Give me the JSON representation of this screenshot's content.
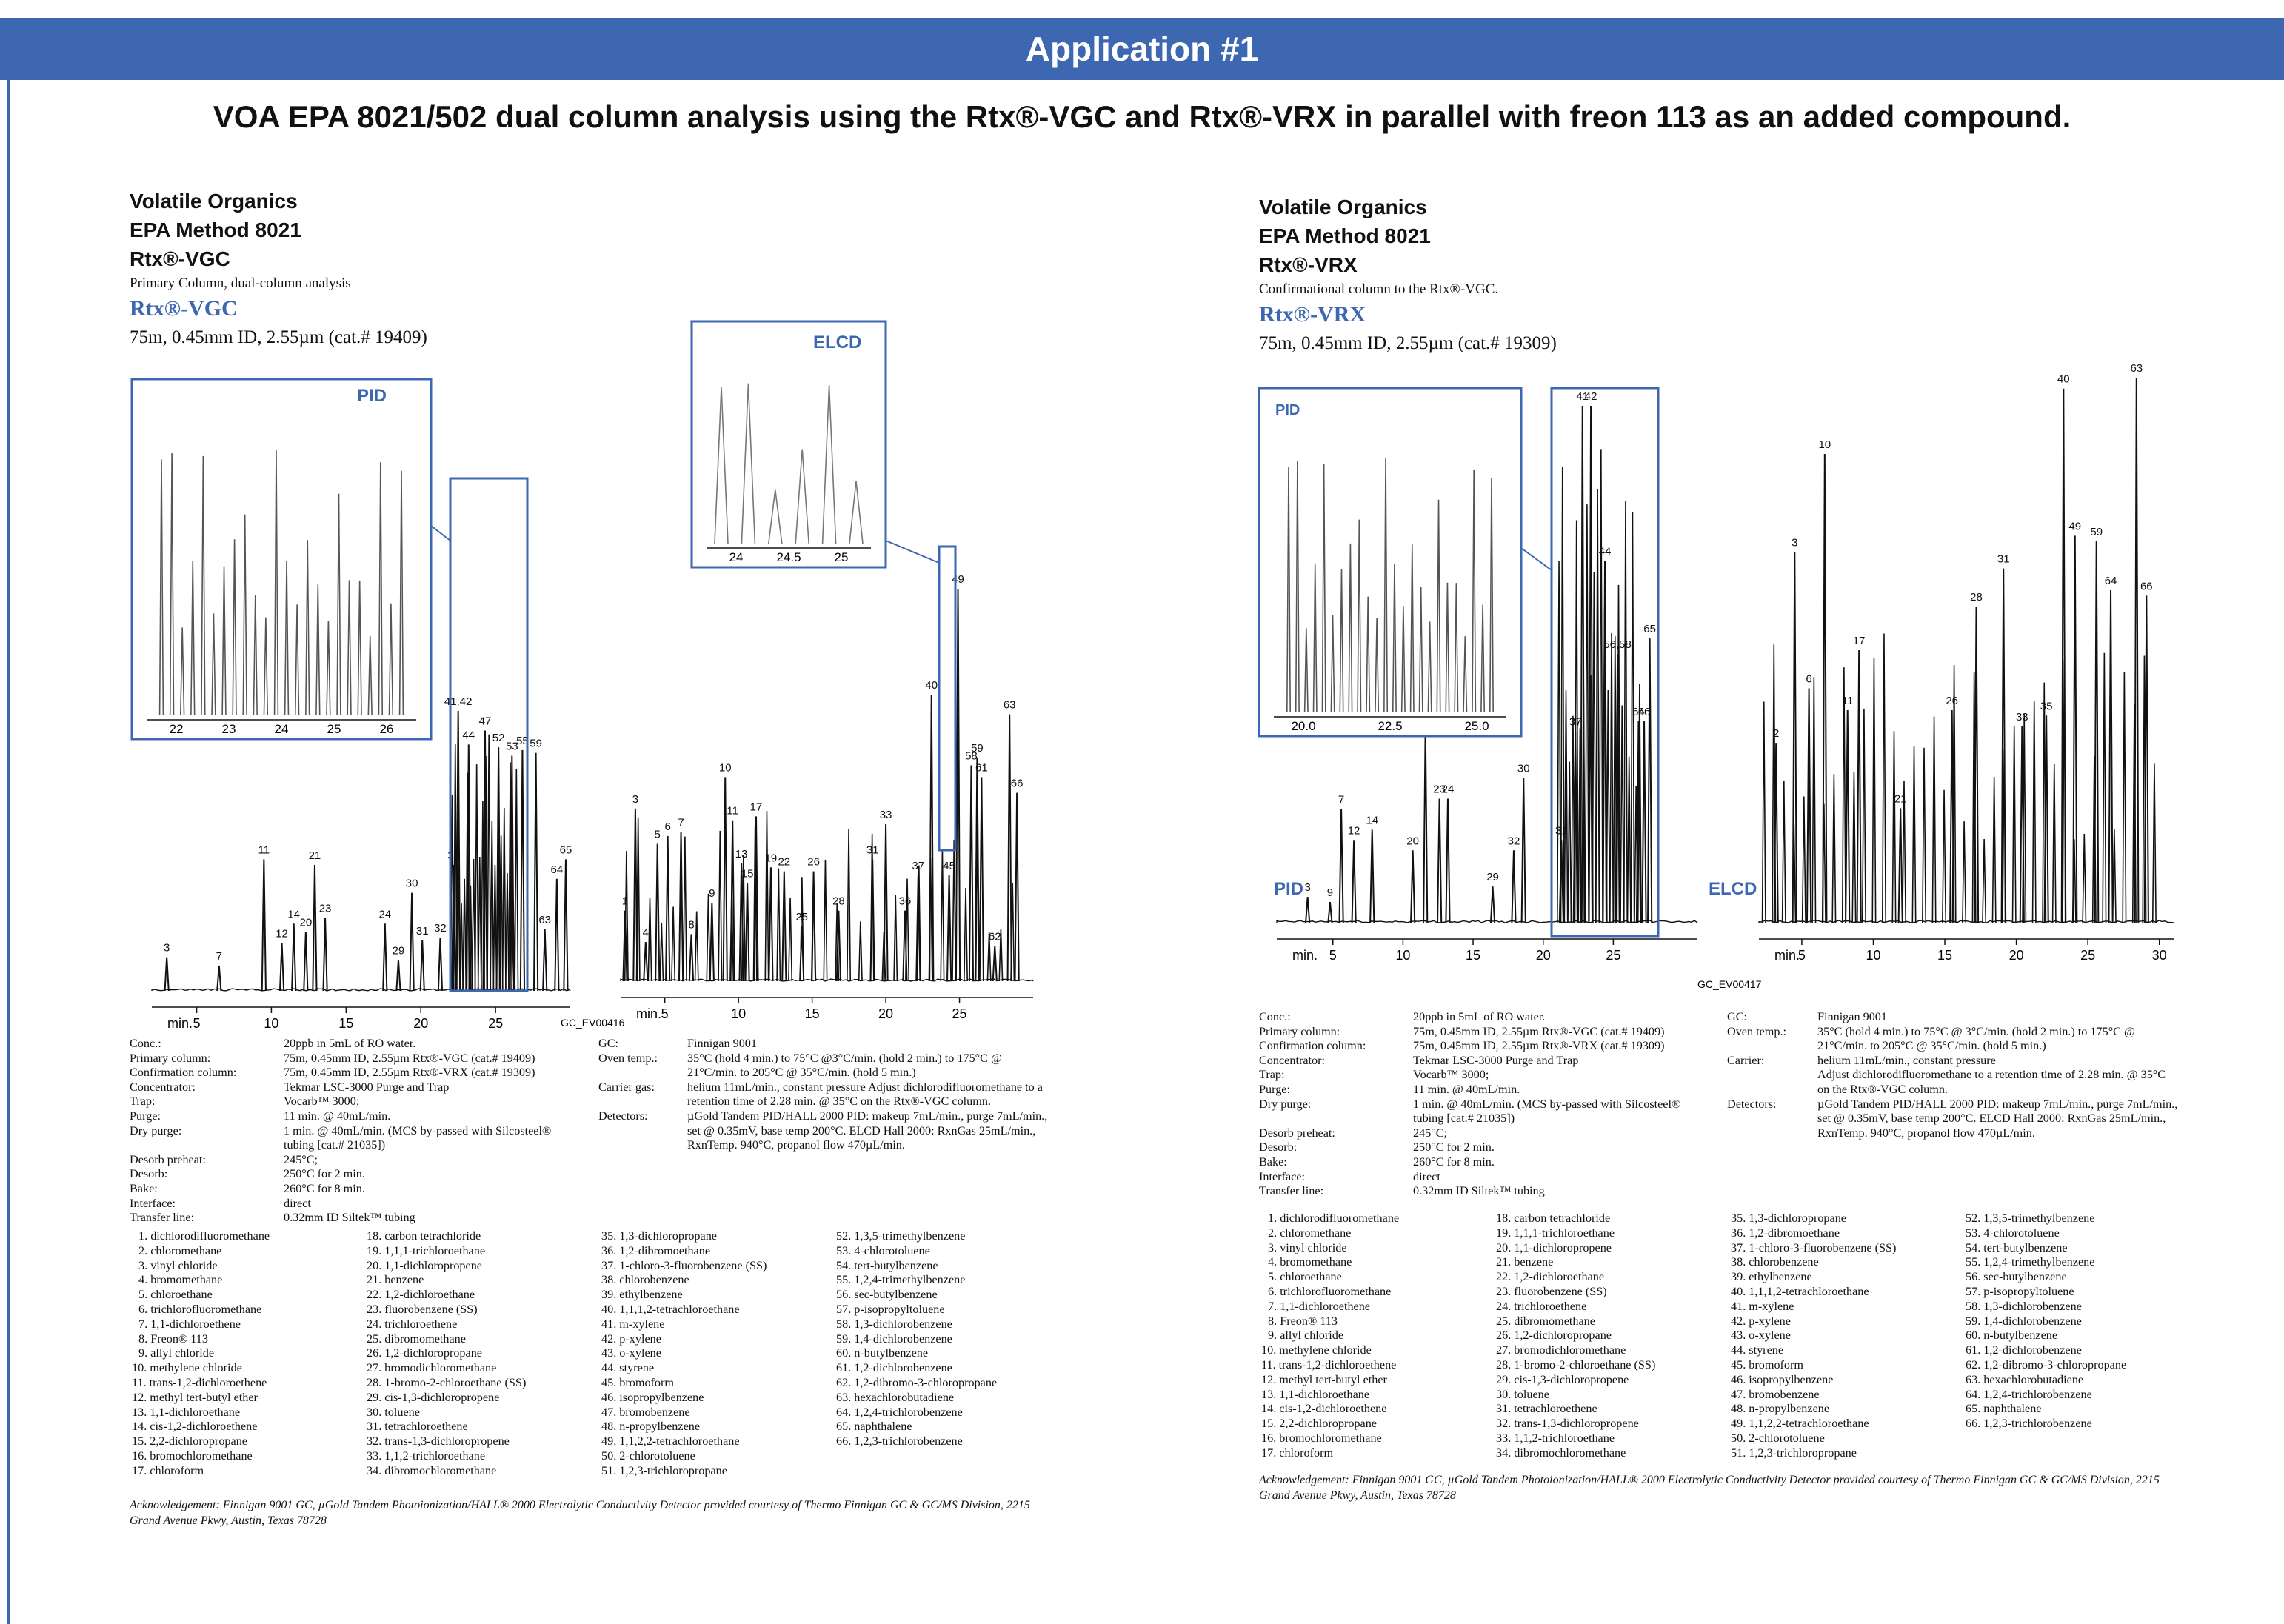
{
  "banner": "Application #1",
  "title": "VOA EPA 8021/502 dual column analysis using the Rtx®-VGC and Rtx®-VRX in parallel with freon 113 as an added compound.",
  "colors": {
    "brand_blue": "#3e67b1",
    "trace": "#111111",
    "inset_trace": "#555555"
  },
  "left": {
    "header": [
      "Volatile Organics",
      "EPA Method 8021",
      "Rtx®-VGC"
    ],
    "subtitle": "Primary Column, dual-column analysis",
    "column_name": "Rtx®-VGC",
    "column_spec": "75m, 0.45mm ID, 2.55µm  (cat.# 19409)",
    "pid_label": "PID",
    "elcd_label": "ELCD",
    "code": "GC_EV00416",
    "pid_axis": {
      "label": "min.",
      "ticks": [
        "5",
        "10",
        "15",
        "20",
        "25"
      ]
    },
    "elcd_axis": {
      "label": "min.",
      "ticks": [
        "5",
        "10",
        "15",
        "20",
        "25"
      ]
    },
    "pid_inset_ticks": [
      "22",
      "23",
      "24",
      "25",
      "26"
    ],
    "elcd_inset_ticks": [
      "24",
      "24.5",
      "25"
    ],
    "conditions_a": [
      {
        "k": "Conc.:",
        "v": "20ppb in 5mL of RO water."
      },
      {
        "k": "Primary column:",
        "v": "75m, 0.45mm ID, 2.55µm Rtx®-VGC (cat.# 19409)"
      },
      {
        "k": "Confirmation column:",
        "v": "75m, 0.45mm ID, 2.55µm Rtx®-VRX (cat.# 19309)"
      },
      {
        "k": "Concentrator:",
        "v": "Tekmar LSC-3000 Purge and Trap"
      },
      {
        "k": "Trap:",
        "v": "Vocarb™ 3000;"
      },
      {
        "k": "Purge:",
        "v": "11 min. @ 40mL/min."
      },
      {
        "k": "Dry purge:",
        "v": "1 min. @ 40mL/min. (MCS by-passed with Silcosteel® tubing [cat.# 21035])"
      },
      {
        "k": "Desorb preheat:",
        "v": "245°C;"
      },
      {
        "k": "Desorb:",
        "v": "250°C for 2 min."
      },
      {
        "k": "Bake:",
        "v": "260°C for 8 min."
      },
      {
        "k": "Interface:",
        "v": "direct"
      },
      {
        "k": "Transfer line:",
        "v": "0.32mm ID Siltek™ tubing"
      }
    ],
    "conditions_b": [
      {
        "k": "GC:",
        "v": "Finnigan 9001"
      },
      {
        "k": "Oven temp.:",
        "v": "35°C (hold 4 min.) to 75°C @3°C/min. (hold 2 min.) to 175°C @ 21°C/min. to 205°C @ 35°C/min. (hold 5 min.)"
      },
      {
        "k": "Carrier gas:",
        "v": "helium 11mL/min., constant pressure Adjust dichlorodifluoromethane to a retention time of 2.28 min. @ 35°C on the Rtx®-VGC column."
      },
      {
        "k": "Detectors:",
        "v": "µGold Tandem PID/HALL 2000 PID:  makeup 7mL/min., purge 7mL/min., set @ 0.35mV, base temp 200°C. ELCD Hall 2000:  RxnGas 25mL/min., RxnTemp. 940°C, propanol flow 470µL/min."
      }
    ],
    "compounds": [
      [
        "1. dichlorodifluoromethane",
        "2. chloromethane",
        "3. vinyl chloride",
        "4. bromomethane",
        "5. chloroethane",
        "6. trichlorofluoromethane",
        "7. 1,1-dichloroethene",
        "8. Freon® 113",
        "9. allyl chloride",
        "10. methylene chloride",
        "11. trans-1,2-dichloroethene",
        "12. methyl tert-butyl ether",
        "13. 1,1-dichloroethane",
        "14. cis-1,2-dichloroethene",
        "15. 2,2-dichloropropane",
        "16. bromochloromethane",
        "17. chloroform"
      ],
      [
        "18. carbon tetrachloride",
        "19. 1,1,1-trichloroethane",
        "20. 1,1-dichloropropene",
        "21. benzene",
        "22. 1,2-dichloroethane",
        "23. fluorobenzene (SS)",
        "24. trichloroethene",
        "25. dibromomethane",
        "26. 1,2-dichloropropane",
        "27. bromodichloromethane",
        "28. 1-bromo-2-chloroethane (SS)",
        "29. cis-1,3-dichloropropene",
        "30. toluene",
        "31. tetrachloroethene",
        "32. trans-1,3-dichloropropene",
        "33. 1,1,2-trichloroethane",
        "34. dibromochloromethane"
      ],
      [
        "35. 1,3-dichloropropane",
        "36. 1,2-dibromoethane",
        "37. 1-chloro-3-fluorobenzene (SS)",
        "38. chlorobenzene",
        "39. ethylbenzene",
        "40. 1,1,1,2-tetrachloroethane",
        "41. m-xylene",
        "42. p-xylene",
        "43. o-xylene",
        "44. styrene",
        "45. bromoform",
        "46. isopropylbenzene",
        "47. bromobenzene",
        "48. n-propylbenzene",
        "49. 1,1,2,2-tetrachloroethane",
        "50. 2-chlorotoluene",
        "51. 1,2,3-trichloropropane"
      ],
      [
        "52. 1,3,5-trimethylbenzene",
        "53. 4-chlorotoluene",
        "54. tert-butylbenzene",
        "55. 1,2,4-trimethylbenzene",
        "56. sec-butylbenzene",
        "57. p-isopropyltoluene",
        "58. 1,3-dichlorobenzene",
        "59. 1,4-dichlorobenzene",
        "60. n-butylbenzene",
        "61. 1,2-dichlorobenzene",
        "62. 1,2-dibromo-3-chloropropane",
        "63. hexachlorobutadiene",
        "64. 1,2,4-trichlorobenzene",
        "65. naphthalene",
        "66. 1,2,3-trichlorobenzene"
      ]
    ],
    "ack": "Acknowledgement: Finnigan 9001 GC,  µGold Tandem Photoionization/HALL® 2000 Electrolytic Conductivity Detector provided courtesy of Thermo Finnigan GC & GC/MS Division, 2215 Grand Avenue Pkwy, Austin, Texas 78728"
  },
  "right": {
    "header": [
      "Volatile Organics",
      "EPA Method 8021",
      "Rtx®-VRX"
    ],
    "subtitle": "Confirmational column to the Rtx®-VGC.",
    "column_name": "Rtx®-VRX",
    "column_spec": "75m, 0.45mm ID, 2.55µm  (cat.# 19309)",
    "pid_label": "PID",
    "elcd_label": "ELCD",
    "code": "GC_EV00417",
    "pid_axis": {
      "label": "min.",
      "ticks": [
        "5",
        "10",
        "15",
        "20",
        "25"
      ]
    },
    "elcd_axis": {
      "label": "min.",
      "ticks": [
        "5",
        "10",
        "15",
        "20",
        "25",
        "30"
      ]
    },
    "pid_inset_ticks": [
      "20.0",
      "22.5",
      "25.0"
    ],
    "conditions_a": [
      {
        "k": "Conc.:",
        "v": "20ppb in 5mL of RO water."
      },
      {
        "k": "Primary column:",
        "v": "75m, 0.45mm ID, 2.55µm Rtx®-VGC (cat.# 19409)"
      },
      {
        "k": "Confirmation column:",
        "v": "75m, 0.45mm ID, 2.55µm Rtx®-VRX (cat.# 19309)"
      },
      {
        "k": "Concentrator:",
        "v": "Tekmar LSC-3000 Purge and Trap"
      },
      {
        "k": "Trap:",
        "v": "Vocarb™ 3000;"
      },
      {
        "k": "Purge:",
        "v": "11 min. @ 40mL/min."
      },
      {
        "k": "Dry purge:",
        "v": "1 min. @ 40mL/min. (MCS by-passed with Silcosteel® tubing [cat.# 21035])"
      },
      {
        "k": "Desorb preheat:",
        "v": "245°C;"
      },
      {
        "k": "Desorb:",
        "v": "250°C for 2 min."
      },
      {
        "k": "Bake:",
        "v": "260°C for 8 min."
      },
      {
        "k": "Interface:",
        "v": "direct"
      },
      {
        "k": "Transfer line:",
        "v": "0.32mm ID Siltek™ tubing"
      }
    ],
    "conditions_b": [
      {
        "k": "GC:",
        "v": "Finnigan 9001"
      },
      {
        "k": "Oven temp.:",
        "v": "35°C (hold 4 min.) to 75°C @ 3°C/min. (hold 2 min.) to 175°C @ 21°C/min. to 205°C @ 35°C/min. (hold 5 min.)"
      },
      {
        "k": "Carrier:",
        "v": "helium 11mL/min., constant pressure"
      },
      {
        "k": "",
        "v": "Adjust dichlorodifluoromethane to a retention time of 2.28 min. @ 35°C on the Rtx®-VGC column."
      },
      {
        "k": "Detectors:",
        "v": "µGold Tandem PID/HALL 2000 PID:  makeup 7mL/min., purge 7mL/min., set @ 0.35mV, base temp 200°C. ELCD Hall 2000:  RxnGas 25mL/min., RxnTemp.  940°C, propanol flow 470µL/min."
      }
    ],
    "compounds": [
      [
        "1. dichlorodifluoromethane",
        "2. chloromethane",
        "3. vinyl chloride",
        "4. bromomethane",
        "5. chloroethane",
        "6. trichlorofluoromethane",
        "7. 1,1-dichloroethene",
        "8. Freon® 113",
        "9. allyl chloride",
        "10. methylene chloride",
        "11. trans-1,2-dichloroethene",
        "12. methyl tert-butyl ether",
        "13. 1,1-dichloroethane",
        "14. cis-1,2-dichloroethene",
        "15. 2,2-dichloropropane",
        "16. bromochloromethane",
        "17. chloroform"
      ],
      [
        "18. carbon tetrachloride",
        "19. 1,1,1-trichloroethane",
        "20. 1,1-dichloropropene",
        "21. benzene",
        "22. 1,2-dichloroethane",
        "23. fluorobenzene (SS)",
        "24. trichloroethene",
        "25. dibromomethane",
        "26. 1,2-dichloropropane",
        "27. bromodichloromethane",
        "28. 1-bromo-2-chloroethane (SS)",
        "29. cis-1,3-dichloropropene",
        "30. toluene",
        "31. tetrachloroethene",
        "32. trans-1,3-dichloropropene",
        "33. 1,1,2-trichloroethane",
        "34. dibromochloromethane"
      ],
      [
        "35. 1,3-dichloropropane",
        "36. 1,2-dibromoethane",
        "37. 1-chloro-3-fluorobenzene (SS)",
        "38. chlorobenzene",
        "39. ethylbenzene",
        "40. 1,1,1,2-tetrachloroethane",
        "41. m-xylene",
        "42. p-xylene",
        "43. o-xylene",
        "44. styrene",
        "45. bromoform",
        "46. isopropylbenzene",
        "47. bromobenzene",
        "48. n-propylbenzene",
        "49. 1,1,2,2-tetrachloroethane",
        "50. 2-chlorotoluene",
        "51. 1,2,3-trichloropropane"
      ],
      [
        "52. 1,3,5-trimethylbenzene",
        "53. 4-chlorotoluene",
        "54. tert-butylbenzene",
        "55. 1,2,4-trimethylbenzene",
        "56. sec-butylbenzene",
        "57. p-isopropyltoluene",
        "58. 1,3-dichlorobenzene",
        "59. 1,4-dichlorobenzene",
        "60. n-butylbenzene",
        "61. 1,2-dichlorobenzene",
        "62. 1,2-dibromo-3-chloropropane",
        "63. hexachlorobutadiene",
        "64. 1,2,4-trichlorobenzene",
        "65. naphthalene",
        "66. 1,2,3-trichlorobenzene"
      ]
    ],
    "ack": "Acknowledgement: Finnigan 9001 GC,  µGold Tandem Photoionization/HALL® 2000 Electrolytic Conductivity Detector provided courtesy of Thermo Finnigan GC & GC/MS Division, 2215 Grand Avenue Pkwy, Austin, Texas 78728"
  },
  "chart_data": [
    {
      "type": "line",
      "title": "",
      "series": [
        {
          "name": "PID",
          "x": [
            3,
            6.5,
            9.5,
            10.7,
            11.5,
            12.3,
            12.9,
            13.6,
            17.6,
            18.5,
            19.4,
            20.1,
            21.3,
            22.2,
            22.5,
            23.2,
            24.3,
            25.2,
            26.1,
            26.8,
            27.7,
            28.3,
            29.1,
            29.7
          ],
          "labels": [
            "3",
            "7",
            "11",
            "12",
            "14",
            "20",
            "21",
            "23",
            "24",
            "29",
            "30",
            "31",
            "32",
            "37",
            "41,42",
            "44",
            "47",
            "52",
            "53",
            "55",
            "59",
            "63",
            "64",
            "65"
          ],
          "values": [
            12,
            9,
            47,
            17,
            24,
            21,
            45,
            26,
            24,
            11,
            35,
            18,
            19,
            45,
            100,
            88,
            93,
            87,
            84,
            86,
            85,
            22,
            40,
            47
          ]
        }
      ],
      "xlabel": "min.",
      "ylabel": "",
      "xlim": [
        2,
        30
      ]
    },
    {
      "type": "line",
      "title": "",
      "series": [
        {
          "name": "ELCD",
          "x": [
            2.3,
            3,
            3.7,
            4.5,
            5.2,
            6.1,
            6.8,
            8.2,
            9.1,
            9.6,
            10.2,
            10.6,
            11.2,
            12.2,
            13.1,
            14.3,
            15.1,
            16.8,
            19.1,
            20,
            21.3,
            22.2,
            23.1,
            24.3,
            24.9,
            25.8,
            26.2,
            26.5,
            27.4,
            28.4,
            28.9
          ],
          "labels": [
            "1",
            "3",
            "4",
            "5",
            "6",
            "7",
            "8",
            "9",
            "10",
            "11",
            "13",
            "15",
            "17",
            "19",
            "22",
            "25",
            "26",
            "28",
            "31",
            "33",
            "36",
            "37",
            "40",
            "45",
            "49",
            "58",
            "59",
            "61",
            "62",
            "63",
            "66"
          ],
          "values": [
            18,
            44,
            10,
            35,
            37,
            38,
            12,
            20,
            52,
            41,
            30,
            25,
            42,
            29,
            28,
            14,
            28,
            18,
            31,
            40,
            18,
            27,
            73,
            27,
            100,
            55,
            57,
            52,
            9,
            68,
            48
          ]
        }
      ],
      "xlabel": "min.",
      "ylabel": "",
      "xlim": [
        2,
        30
      ]
    },
    {
      "type": "line",
      "title": "",
      "series": [
        {
          "name": "PID",
          "x": [
            3.2,
            4.8,
            5.6,
            6.5,
            7.8,
            10.7,
            11.6,
            12.6,
            13.2,
            16.4,
            17.9,
            18.6,
            21.3,
            22.3,
            22.8,
            23.4,
            24.4,
            25.3,
            26.8,
            27.2,
            27.6
          ],
          "labels": [
            "3",
            "9",
            "7",
            "12",
            "14",
            "20",
            "21",
            "23",
            "24",
            "29",
            "32",
            "30",
            "31",
            "37",
            "41",
            "42",
            "44",
            "56,58",
            "64",
            "66",
            "65"
          ],
          "values": [
            5,
            4,
            22,
            16,
            18,
            14,
            38,
            24,
            24,
            7,
            14,
            28,
            16,
            37,
            100,
            100,
            70,
            52,
            39,
            39,
            55
          ]
        }
      ],
      "xlabel": "min.",
      "ylabel": "",
      "xlim": [
        1,
        31
      ]
    },
    {
      "type": "line",
      "title": "",
      "series": [
        {
          "name": "ELCD",
          "x": [
            3.2,
            4.5,
            5.5,
            6.6,
            8.2,
            9,
            11.9,
            15.5,
            17.2,
            19.1,
            20.4,
            22.1,
            23.3,
            24.1,
            25.6,
            26.6,
            28.4,
            29.1
          ],
          "labels": [
            "2",
            "3",
            "6",
            "10",
            "11",
            "17",
            "21",
            "26",
            "28",
            "31",
            "33",
            "35",
            "40",
            "49",
            "59",
            "64",
            "63",
            "66"
          ],
          "values": [
            33,
            68,
            43,
            86,
            39,
            50,
            21,
            39,
            58,
            65,
            36,
            38,
            98,
            71,
            70,
            61,
            100,
            60
          ]
        }
      ],
      "xlabel": "min.",
      "ylabel": "",
      "xlim": [
        2,
        31
      ]
    }
  ]
}
